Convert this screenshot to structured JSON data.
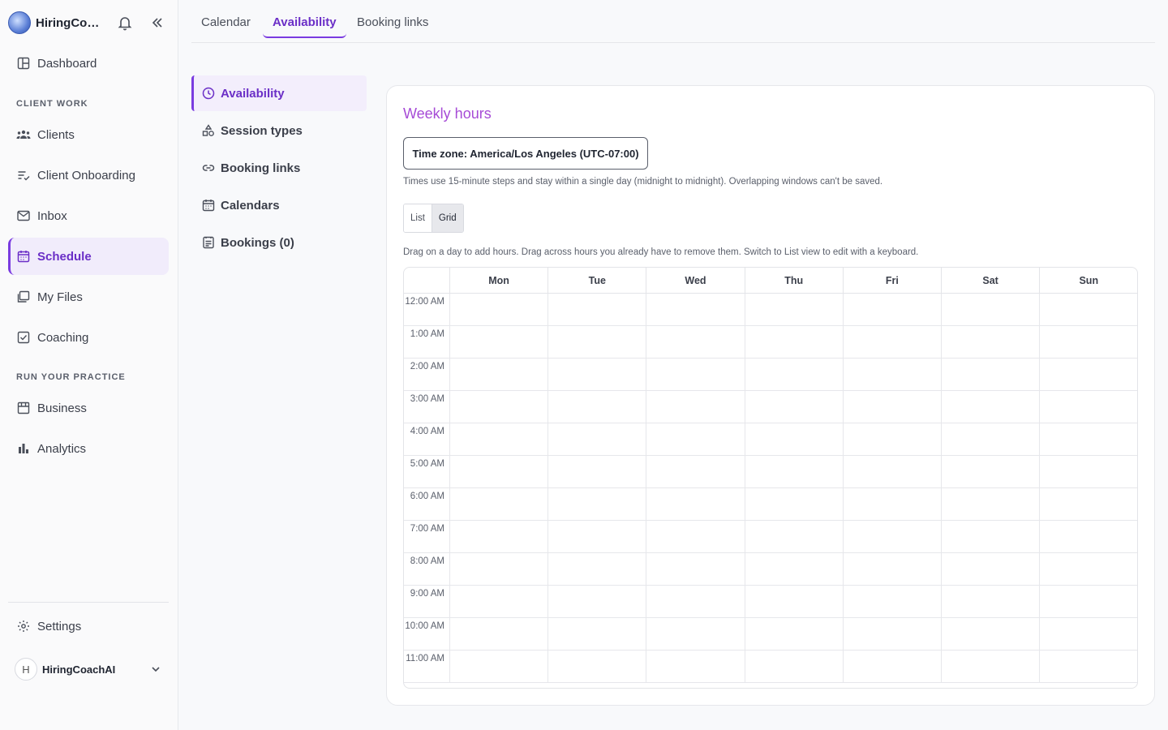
{
  "brand": {
    "name": "HiringCoa..."
  },
  "sidebar": {
    "items": [
      {
        "label": "Dashboard",
        "icon": "dashboard-icon"
      },
      {
        "label": "Clients",
        "icon": "users-icon"
      },
      {
        "label": "Client Onboarding",
        "icon": "list-check-icon"
      },
      {
        "label": "Inbox",
        "icon": "mail-icon"
      },
      {
        "label": "Schedule",
        "icon": "calendar-icon"
      },
      {
        "label": "My Files",
        "icon": "files-icon"
      },
      {
        "label": "Coaching",
        "icon": "checkbox-icon"
      },
      {
        "label": "Business",
        "icon": "store-icon"
      },
      {
        "label": "Analytics",
        "icon": "bar-chart-icon"
      }
    ],
    "sections": [
      "CLIENT WORK",
      "RUN YOUR PRACTICE"
    ],
    "settings_label": "Settings",
    "user": {
      "initial": "H",
      "name": "HiringCoachAI"
    }
  },
  "tabs": [
    "Calendar",
    "Availability",
    "Booking links"
  ],
  "subnav": [
    {
      "label": "Availability",
      "icon": "clock-icon"
    },
    {
      "label": "Session types",
      "icon": "shapes-icon"
    },
    {
      "label": "Booking links",
      "icon": "link-icon"
    },
    {
      "label": "Calendars",
      "icon": "calendar-icon"
    },
    {
      "label": "Bookings (0)",
      "icon": "list-icon"
    }
  ],
  "weekly": {
    "title": "Weekly hours",
    "timezone_button": "Time zone: America/Los Angeles (UTC-07:00)",
    "hint": "Times use 15-minute steps and stay within a single day (midnight to midnight). Overlapping windows can't be saved.",
    "view_options": [
      "List",
      "Grid"
    ],
    "selected_view": "Grid",
    "drag_hint": "Drag on a day to add hours. Drag across hours you already have to remove them. Switch to List view to edit with a keyboard.",
    "days": [
      "Mon",
      "Tue",
      "Wed",
      "Thu",
      "Fri",
      "Sat",
      "Sun"
    ],
    "times": [
      "12:00 AM",
      "1:00 AM",
      "2:00 AM",
      "3:00 AM",
      "4:00 AM",
      "5:00 AM",
      "6:00 AM",
      "7:00 AM",
      "8:00 AM",
      "9:00 AM",
      "10:00 AM",
      "11:00 AM"
    ]
  },
  "colors": {
    "accent": "#7a3be0",
    "accent_bg": "#f1ecfb",
    "title": "#a64bd6"
  }
}
